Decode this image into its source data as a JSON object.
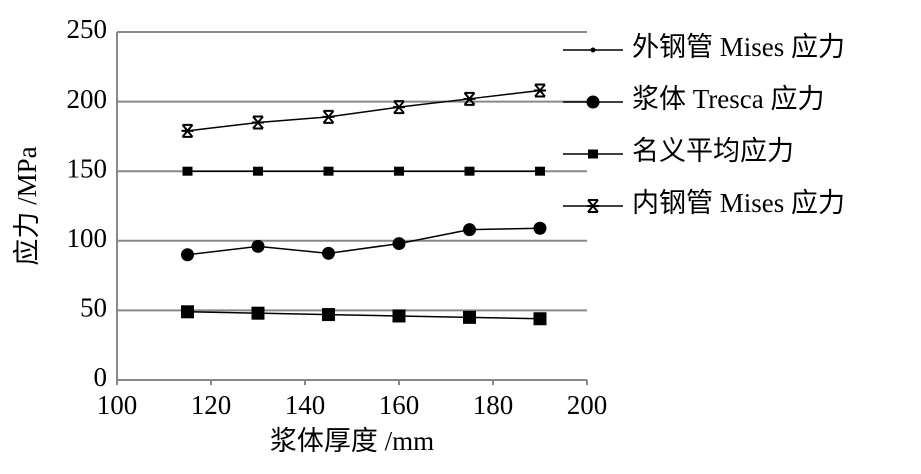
{
  "chart_data": {
    "type": "line",
    "x_label": "浆体厚度 /mm",
    "y_label": "应力 /MPa",
    "x": [
      115,
      130,
      145,
      160,
      175,
      190
    ],
    "series": [
      {
        "name": "外钢管 Mises 应力",
        "color": "#000000",
        "marker": "square",
        "values": [
          49,
          48,
          47,
          46,
          45,
          44
        ]
      },
      {
        "name": "浆体 Tresca 应力",
        "color": "#000000",
        "marker": "circle",
        "values": [
          90,
          96,
          91,
          98,
          108,
          109
        ]
      },
      {
        "name": "名义平均应力",
        "color": "#000000",
        "marker": "small-square",
        "values": [
          150,
          150,
          150,
          150,
          150,
          150
        ]
      },
      {
        "name": "内钢管 Mises 应力",
        "color": "#000000",
        "marker": "star",
        "values": [
          179,
          185,
          189,
          196,
          202,
          208
        ]
      }
    ],
    "xlim": [
      100,
      200
    ],
    "xticks": [
      100,
      120,
      140,
      160,
      180,
      200
    ],
    "ylim": [
      0,
      250
    ],
    "yticks": [
      0,
      50,
      100,
      150,
      200,
      250
    ],
    "grid": true,
    "legend": "right"
  }
}
